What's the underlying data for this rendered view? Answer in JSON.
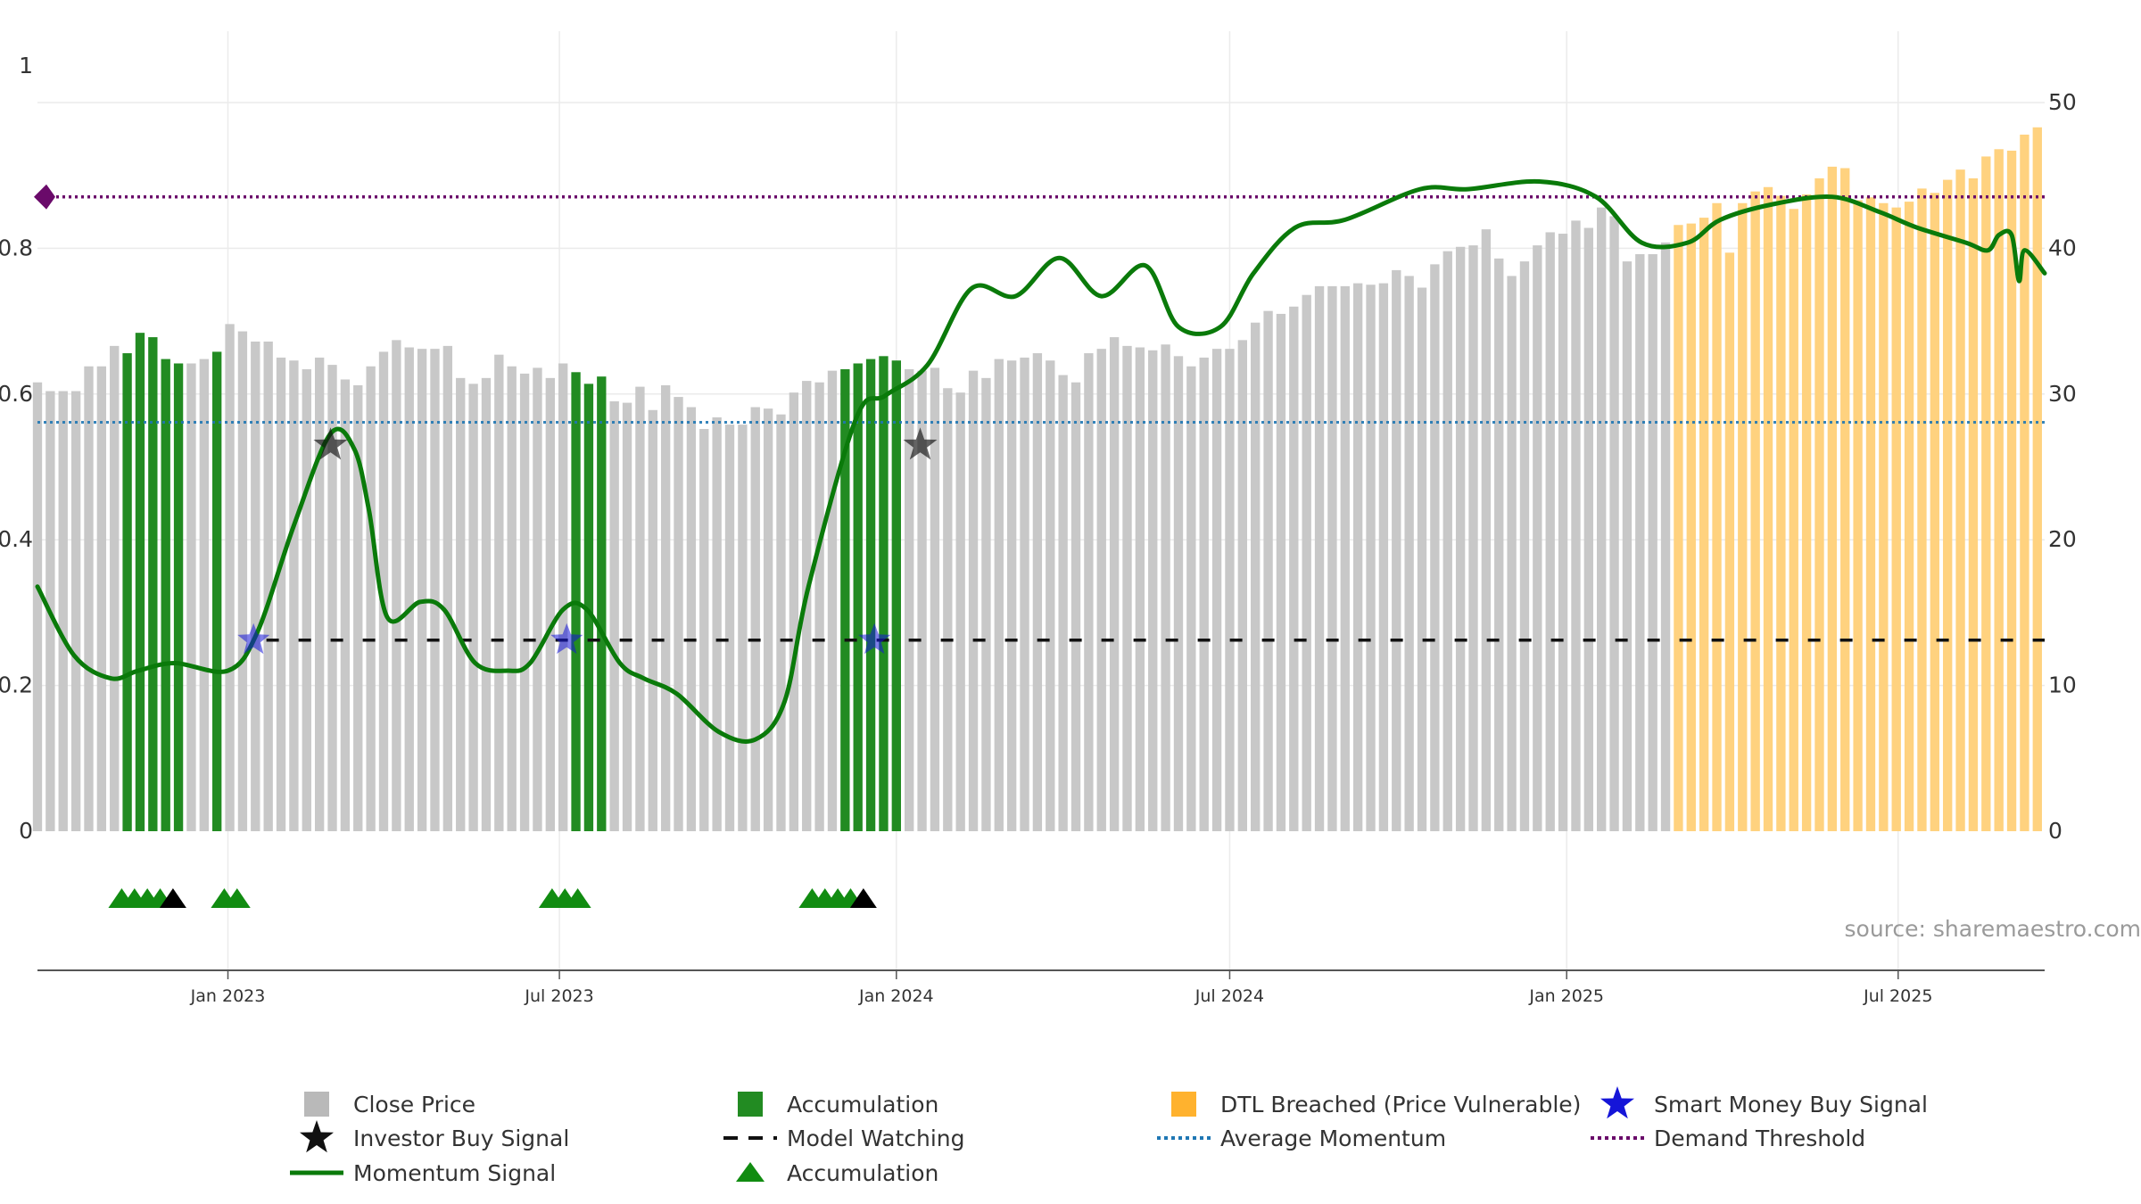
{
  "chart_data": {
    "type": "bar",
    "left_axis": {
      "ticks": [
        "0",
        "0.2",
        "0.4",
        "0.6",
        "0.8",
        "1"
      ],
      "range": [
        0,
        1
      ]
    },
    "right_axis": {
      "ticks": [
        "0",
        "10",
        "20",
        "30",
        "40",
        "50"
      ],
      "range": [
        0,
        50
      ]
    },
    "x_axis": {
      "ticks": [
        "Jan 2023",
        "Jul 2023",
        "Jan 2024",
        "Jul 2024",
        "Jan 2025",
        "Jul 2025"
      ],
      "tick_dates": [
        "2023-01-01",
        "2023-07-01",
        "2024-01-01",
        "2024-07-01",
        "2025-01-01",
        "2025-07-01"
      ],
      "range": [
        "2022-09-19",
        "2025-09-19"
      ]
    },
    "grid": true,
    "colors": {
      "close": "#c8c8c8",
      "accumulation": "#228b22",
      "dtl": "#ffd27f",
      "momentum": "#0a7a0a",
      "average": "#1f77b4",
      "demand": "#6a0a6a",
      "watching": "#111111",
      "smart_money": "#1515d8",
      "investor": "#111111"
    },
    "close_bars": {
      "start": "2022-09-19",
      "interval_days": 7,
      "values": [
        30.8,
        30.2,
        30.2,
        30.2,
        31.9,
        31.9,
        33.3,
        32.8,
        34.2,
        33.9,
        32.4,
        32.1,
        32.1,
        32.4,
        32.9,
        34.8,
        34.3,
        33.6,
        33.6,
        32.5,
        32.3,
        31.7,
        32.5,
        32.0,
        31.0,
        30.6,
        31.9,
        32.9,
        33.7,
        33.2,
        33.1,
        33.1,
        33.3,
        31.1,
        30.7,
        31.1,
        32.7,
        31.9,
        31.4,
        31.8,
        31.1,
        32.1,
        31.5,
        30.7,
        31.2,
        29.5,
        29.4,
        30.5,
        28.9,
        30.6,
        29.8,
        29.1,
        27.6,
        28.4,
        27.9,
        27.9,
        29.1,
        29.0,
        28.6,
        30.1,
        30.9,
        30.8,
        31.6,
        31.7,
        32.1,
        32.4,
        32.6,
        32.3,
        31.7,
        31.6,
        31.8,
        30.4,
        30.1,
        31.6,
        31.1,
        32.4,
        32.3,
        32.5,
        32.8,
        32.3,
        31.3,
        30.8,
        32.8,
        33.1,
        33.9,
        33.3,
        33.2,
        33.0,
        33.4,
        32.6,
        31.9,
        32.5,
        33.1,
        33.1,
        33.7,
        34.9,
        35.7,
        35.5,
        36.0,
        36.8,
        37.4,
        37.4,
        37.4,
        37.6,
        37.5,
        37.6,
        38.5,
        38.1,
        37.3,
        38.9,
        39.8,
        40.1,
        40.2,
        41.3,
        39.3,
        38.1,
        39.1,
        40.2,
        41.1,
        41.0,
        41.9,
        41.4,
        42.8,
        42.2,
        39.1,
        39.6,
        39.6,
        40.4,
        41.6,
        41.7,
        42.1,
        43.1,
        39.7,
        43.1,
        43.9,
        44.2,
        43.6,
        42.7,
        43.7,
        44.8,
        45.6,
        45.5,
        43.3,
        43.5,
        43.1,
        42.8,
        43.2,
        44.1,
        43.8,
        44.7,
        45.4,
        44.8,
        46.3,
        46.8,
        46.7,
        47.8,
        48.3
      ],
      "accumulation_weeks": [
        7,
        8,
        9,
        10,
        11,
        14,
        42,
        43,
        44,
        63,
        64,
        65,
        66,
        67
      ],
      "dtl_weeks": [
        128,
        129,
        130,
        131,
        132,
        133,
        134,
        135,
        136,
        137,
        138,
        139,
        140,
        141,
        142,
        143,
        144,
        145,
        146,
        147,
        148,
        149,
        150,
        151,
        152,
        153,
        154,
        155,
        156,
        157,
        158,
        159,
        160,
        161,
        162,
        163,
        164,
        165,
        166,
        167,
        168,
        169,
        170,
        171,
        172,
        173,
        174,
        175,
        176,
        177,
        178,
        179,
        180,
        181,
        182,
        183
      ]
    },
    "momentum_signal": {
      "dates": [
        "2022-09-19",
        "2022-10-09",
        "2022-10-29",
        "2022-11-13",
        "2022-12-03",
        "2023-01-01",
        "2023-01-17",
        "2023-02-06",
        "2023-02-26",
        "2023-03-11",
        "2023-03-19",
        "2023-03-29",
        "2023-04-16",
        "2023-04-29",
        "2023-05-16",
        "2023-06-03",
        "2023-06-15",
        "2023-07-03",
        "2023-07-16",
        "2023-08-03",
        "2023-08-16",
        "2023-09-03",
        "2023-09-26",
        "2023-10-16",
        "2023-11-01",
        "2023-11-14",
        "2023-12-10",
        "2023-12-26",
        "2024-01-18",
        "2024-02-11",
        "2024-03-06",
        "2024-03-30",
        "2024-04-22",
        "2024-05-16",
        "2024-06-03",
        "2024-06-26",
        "2024-07-14",
        "2024-08-06",
        "2024-09-02",
        "2024-10-13",
        "2024-11-08",
        "2024-12-17",
        "2025-01-17",
        "2025-02-11",
        "2025-03-08",
        "2025-03-26",
        "2025-04-23",
        "2025-05-26",
        "2025-06-21",
        "2025-07-11",
        "2025-08-07",
        "2025-08-19",
        "2025-08-25",
        "2025-09-01",
        "2025-09-05",
        "2025-09-08",
        "2025-09-19"
      ],
      "values": [
        0.32,
        0.23,
        0.2,
        0.21,
        0.22,
        0.21,
        0.26,
        0.4,
        0.52,
        0.5,
        0.42,
        0.28,
        0.3,
        0.29,
        0.22,
        0.21,
        0.22,
        0.29,
        0.29,
        0.22,
        0.2,
        0.18,
        0.13,
        0.12,
        0.17,
        0.32,
        0.54,
        0.57,
        0.61,
        0.71,
        0.7,
        0.75,
        0.7,
        0.74,
        0.66,
        0.66,
        0.73,
        0.79,
        0.8,
        0.84,
        0.84,
        0.85,
        0.83,
        0.77,
        0.77,
        0.8,
        0.82,
        0.83,
        0.81,
        0.79,
        0.77,
        0.76,
        0.78,
        0.78,
        0.72,
        0.76,
        0.73
      ]
    },
    "average_momentum": 0.535,
    "demand_threshold": 0.83,
    "model_watching": {
      "value": 0.25,
      "from": "2023-01-22",
      "to": "2025-09-19"
    },
    "investor_buy_signals": [
      {
        "date": "2023-02-26",
        "value": 0.505
      },
      {
        "date": "2024-01-14",
        "value": 0.505
      }
    ],
    "smart_money_buy_signals": [
      {
        "date": "2023-01-15",
        "value": 0.25
      },
      {
        "date": "2023-07-05",
        "value": 0.25
      },
      {
        "date": "2023-12-20",
        "value": 0.25
      }
    ],
    "accumulation_markers": [
      {
        "date": "2022-11-04",
        "color": "green"
      },
      {
        "date": "2022-11-11",
        "color": "green"
      },
      {
        "date": "2022-11-18",
        "color": "green"
      },
      {
        "date": "2022-11-25",
        "color": "green"
      },
      {
        "date": "2022-12-02",
        "color": "black"
      },
      {
        "date": "2022-12-30",
        "color": "green"
      },
      {
        "date": "2023-01-06",
        "color": "green"
      },
      {
        "date": "2023-06-27",
        "color": "green"
      },
      {
        "date": "2023-07-04",
        "color": "green"
      },
      {
        "date": "2023-07-11",
        "color": "green"
      },
      {
        "date": "2023-11-16",
        "color": "green"
      },
      {
        "date": "2023-11-23",
        "color": "green"
      },
      {
        "date": "2023-11-30",
        "color": "green"
      },
      {
        "date": "2023-12-07",
        "color": "green"
      },
      {
        "date": "2023-12-14",
        "color": "black"
      }
    ],
    "source": "source: sharemaestro.com",
    "legend": [
      {
        "key": "close",
        "label": "Close Price",
        "symbol": "square",
        "color": "#b9b9b9"
      },
      {
        "key": "accumulation-bar",
        "label": "Accumulation",
        "symbol": "square",
        "color": "#228b22"
      },
      {
        "key": "dtl",
        "label": "DTL Breached (Price Vulnerable)",
        "symbol": "square",
        "color": "#ffb22e"
      },
      {
        "key": "smart-money",
        "label": "Smart Money Buy Signal",
        "symbol": "star",
        "color": "#1515d8"
      },
      {
        "key": "investor",
        "label": "Investor Buy Signal",
        "symbol": "star",
        "color": "#111111"
      },
      {
        "key": "watching",
        "label": "Model Watching",
        "symbol": "dash",
        "color": "#111111"
      },
      {
        "key": "average",
        "label": "Average Momentum",
        "symbol": "dot",
        "color": "#1f77b4"
      },
      {
        "key": "demand",
        "label": "Demand Threshold",
        "symbol": "dot",
        "color": "#6a0a6a"
      },
      {
        "key": "momentum",
        "label": "Momentum Signal",
        "symbol": "line",
        "color": "#0a7a0a"
      },
      {
        "key": "accumulation-marker",
        "label": "Accumulation",
        "symbol": "triangle",
        "color": "#118c11"
      }
    ]
  }
}
